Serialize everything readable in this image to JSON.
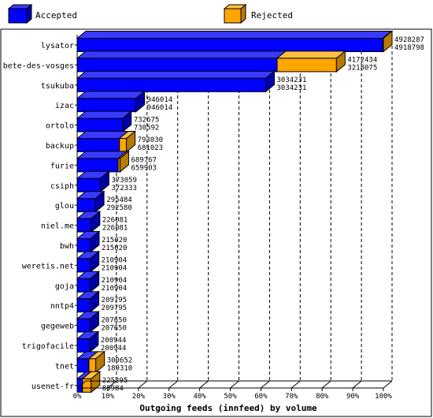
{
  "legend": {
    "accepted_label": "Accepted",
    "rejected_label": "Rejected"
  },
  "colors": {
    "accepted": "#0000ff",
    "rejected": "#ffa500",
    "accepted_top": "#3a3aff",
    "accepted_side": "#0000a8",
    "rejected_top": "#ffc040",
    "rejected_side": "#b87a00"
  },
  "chart_data": {
    "type": "bar",
    "orientation": "horizontal",
    "xlabel": "Outgoing feeds (innfeed) by volume",
    "xticks": [
      "0%",
      "10%",
      "20%",
      "30%",
      "40%",
      "50%",
      "60%",
      "70%",
      "80%",
      "90%",
      "100%"
    ],
    "xlim": [
      0,
      100
    ],
    "grid": true,
    "categories": [
      "lysator",
      "bete-des-vosges",
      "tsukuba",
      "izac",
      "ortolo",
      "backup",
      "furie",
      "csiph",
      "glou",
      "niel.me",
      "bwh",
      "weretis.net",
      "goja",
      "nntp4",
      "gegeweb",
      "trigofacile",
      "tnet",
      "usenet-fr"
    ],
    "series": [
      {
        "name": "Accepted",
        "values": [
          4918798,
          3218075,
          3034231,
          946014,
          730592,
          681023,
          659903,
          372333,
          292580,
          226081,
          215020,
          210904,
          210904,
          209795,
          207650,
          200944,
          189310,
          85984
        ]
      },
      {
        "name": "Rejected",
        "values": [
          4928287,
          4172434,
          3034231,
          946014,
          732675,
          793030,
          689767,
          373059,
          295484,
          226081,
          215020,
          210904,
          210904,
          209795,
          207650,
          200944,
          300652,
          225295
        ]
      }
    ],
    "max_value": 4928287
  }
}
